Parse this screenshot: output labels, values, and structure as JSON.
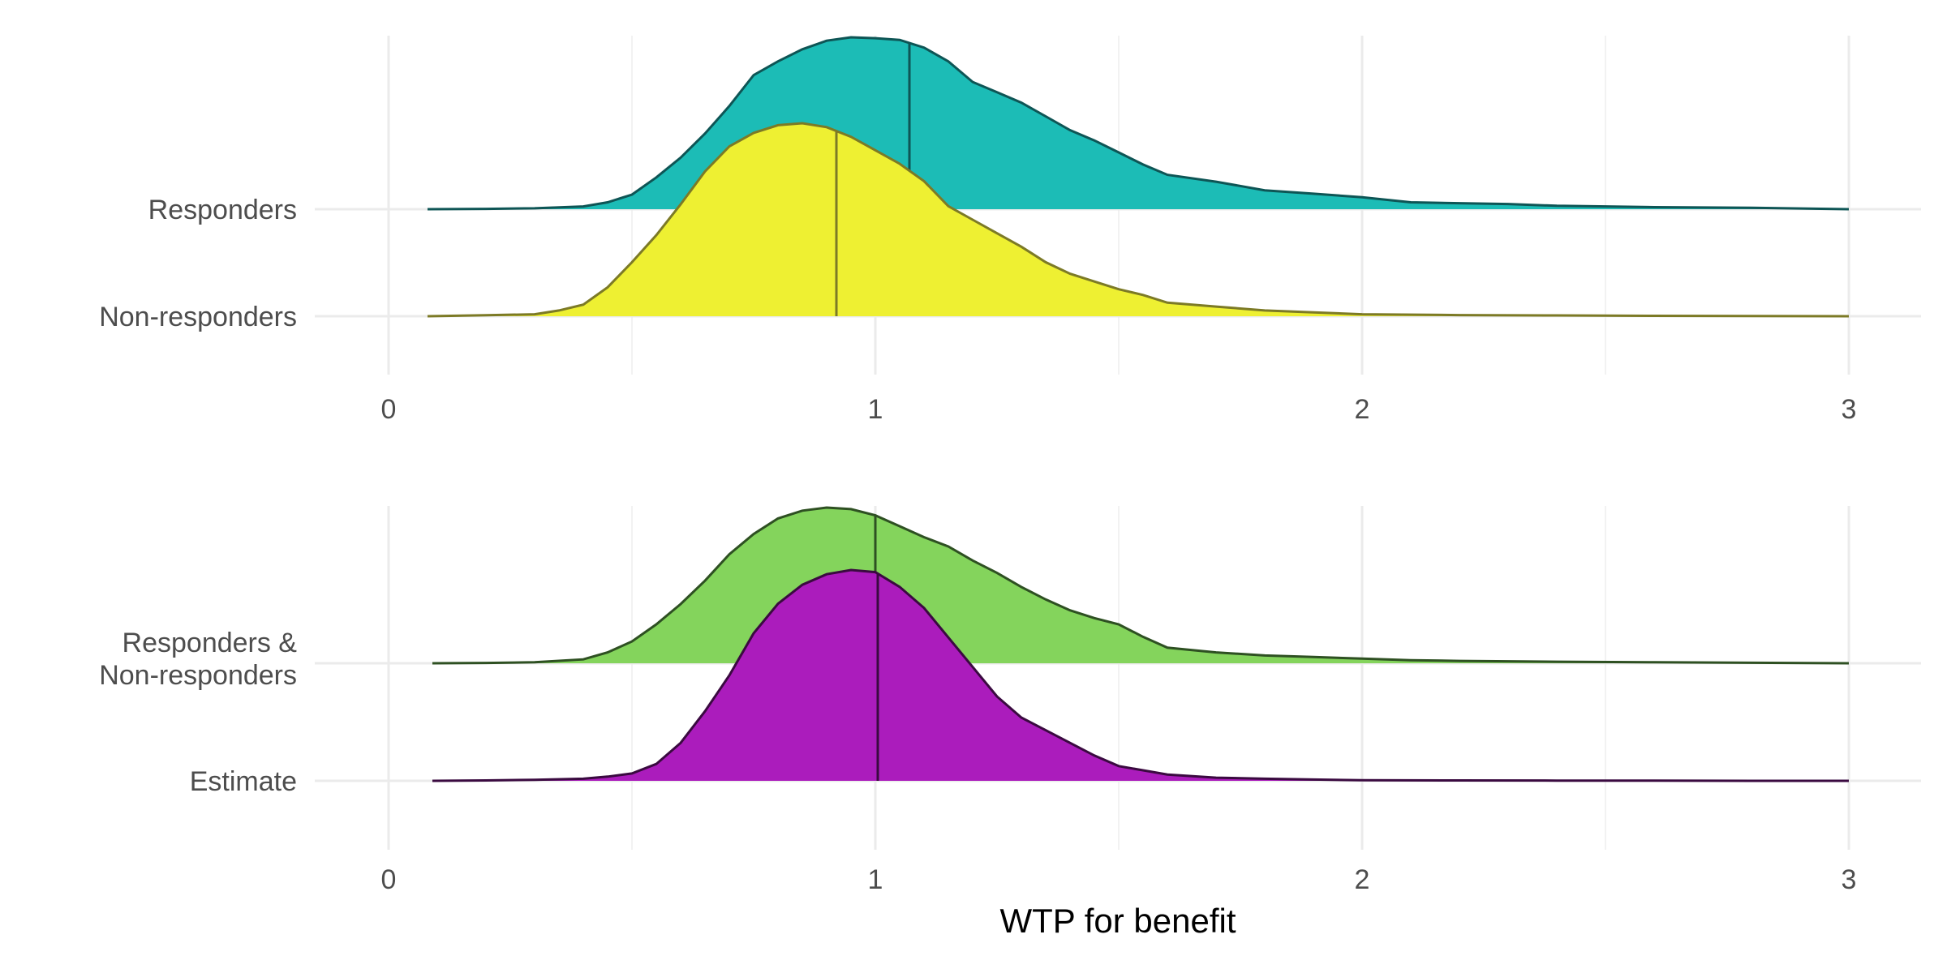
{
  "chart_data": [
    {
      "type": "ridgeline",
      "panel": "top",
      "x_ticks": [
        "0",
        "1",
        "2",
        "3"
      ],
      "xlim": [
        0,
        3
      ],
      "series": [
        {
          "name": "Responders",
          "label_lines": [
            "Responders"
          ],
          "fill": "#1cbcb6",
          "line": "#0e5555",
          "median": 1.07,
          "x": [
            0.08,
            0.2,
            0.3,
            0.4,
            0.45,
            0.5,
            0.55,
            0.6,
            0.65,
            0.7,
            0.75,
            0.8,
            0.85,
            0.9,
            0.95,
            1.0,
            1.05,
            1.1,
            1.15,
            1.2,
            1.25,
            1.3,
            1.35,
            1.4,
            1.45,
            1.5,
            1.55,
            1.6,
            1.7,
            1.8,
            1.9,
            2.0,
            2.1,
            2.2,
            2.3,
            2.4,
            2.6,
            2.8,
            3.0
          ],
          "density": [
            0.0,
            0.002,
            0.005,
            0.016,
            0.04,
            0.085,
            0.185,
            0.3,
            0.44,
            0.6,
            0.78,
            0.86,
            0.93,
            0.98,
            1.0,
            0.995,
            0.985,
            0.94,
            0.86,
            0.74,
            0.68,
            0.62,
            0.54,
            0.46,
            0.4,
            0.33,
            0.26,
            0.2,
            0.16,
            0.11,
            0.09,
            0.07,
            0.04,
            0.035,
            0.03,
            0.02,
            0.012,
            0.008,
            0.0
          ]
        },
        {
          "name": "Non-responders",
          "label_lines": [
            "Non-responders"
          ],
          "fill": "#eef032",
          "line": "#7c7a26",
          "median": 0.92,
          "x": [
            0.08,
            0.2,
            0.3,
            0.35,
            0.4,
            0.45,
            0.5,
            0.55,
            0.6,
            0.65,
            0.7,
            0.75,
            0.8,
            0.85,
            0.9,
            0.95,
            1.0,
            1.05,
            1.1,
            1.15,
            1.2,
            1.25,
            1.3,
            1.35,
            1.4,
            1.45,
            1.5,
            1.55,
            1.6,
            1.7,
            1.8,
            1.9,
            2.0,
            2.2,
            2.4,
            2.6,
            2.8,
            3.0
          ],
          "density": [
            0.0,
            0.005,
            0.01,
            0.03,
            0.06,
            0.15,
            0.28,
            0.42,
            0.58,
            0.75,
            0.88,
            0.95,
            0.99,
            1.0,
            0.98,
            0.93,
            0.86,
            0.79,
            0.7,
            0.57,
            0.5,
            0.43,
            0.36,
            0.28,
            0.22,
            0.18,
            0.14,
            0.11,
            0.07,
            0.05,
            0.03,
            0.02,
            0.01,
            0.006,
            0.004,
            0.002,
            0.001,
            0.0
          ]
        }
      ]
    },
    {
      "type": "ridgeline",
      "panel": "bottom",
      "x_ticks": [
        "0",
        "1",
        "2",
        "3"
      ],
      "xlim": [
        0,
        3
      ],
      "xlabel": "WTP for benefit",
      "series": [
        {
          "name": "Responders & Non-responders",
          "label_lines": [
            "Responders &",
            "Non-responders"
          ],
          "fill": "#84d45c",
          "line": "#2e5022",
          "median": 1.0,
          "x": [
            0.09,
            0.2,
            0.3,
            0.4,
            0.45,
            0.5,
            0.55,
            0.6,
            0.65,
            0.7,
            0.75,
            0.8,
            0.85,
            0.9,
            0.95,
            1.0,
            1.05,
            1.1,
            1.15,
            1.2,
            1.25,
            1.3,
            1.35,
            1.4,
            1.45,
            1.5,
            1.55,
            1.6,
            1.7,
            1.8,
            1.9,
            2.0,
            2.1,
            2.2,
            2.4,
            2.6,
            2.8,
            3.0
          ],
          "density": [
            0.0,
            0.002,
            0.006,
            0.025,
            0.07,
            0.14,
            0.25,
            0.38,
            0.53,
            0.7,
            0.83,
            0.93,
            0.98,
            1.0,
            0.99,
            0.95,
            0.88,
            0.81,
            0.75,
            0.66,
            0.58,
            0.49,
            0.41,
            0.34,
            0.29,
            0.25,
            0.17,
            0.1,
            0.07,
            0.05,
            0.04,
            0.03,
            0.02,
            0.015,
            0.01,
            0.006,
            0.003,
            0.0
          ]
        },
        {
          "name": "Estimate",
          "label_lines": [
            "Estimate"
          ],
          "fill": "#ab1cbc",
          "line": "#3a0a40",
          "median": 1.005,
          "x": [
            0.09,
            0.2,
            0.3,
            0.4,
            0.45,
            0.5,
            0.55,
            0.6,
            0.65,
            0.7,
            0.75,
            0.8,
            0.85,
            0.9,
            0.95,
            1.0,
            1.05,
            1.1,
            1.15,
            1.2,
            1.25,
            1.3,
            1.35,
            1.4,
            1.45,
            1.5,
            1.55,
            1.6,
            1.7,
            1.8,
            1.9,
            2.0,
            2.2,
            2.4,
            2.6,
            2.8,
            3.0
          ],
          "density": [
            0.0,
            0.002,
            0.005,
            0.01,
            0.02,
            0.035,
            0.08,
            0.18,
            0.33,
            0.5,
            0.7,
            0.84,
            0.93,
            0.98,
            1.0,
            0.99,
            0.92,
            0.82,
            0.68,
            0.54,
            0.4,
            0.3,
            0.24,
            0.18,
            0.12,
            0.07,
            0.05,
            0.03,
            0.015,
            0.01,
            0.006,
            0.003,
            0.002,
            0.001,
            0.001,
            0.0,
            0.0
          ]
        }
      ]
    }
  ]
}
